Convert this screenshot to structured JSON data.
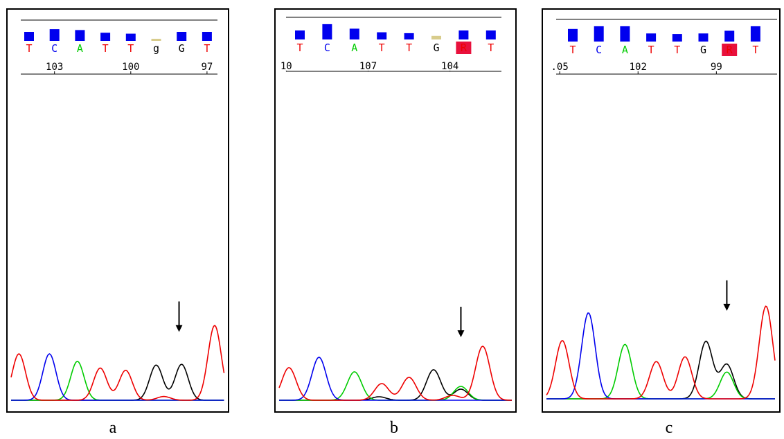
{
  "colors": {
    "A": "#00cc00",
    "C": "#0000ee",
    "G": "#000000",
    "T": "#ee0000",
    "R": "#ee0000",
    "qv_bar": "#0000ee",
    "qv_low": "#d8cc8c",
    "ambig_bg": "#e8103c"
  },
  "panels": [
    {
      "caption": "a",
      "bases": [
        "T",
        "C",
        "A",
        "T",
        "T",
        "g",
        "G",
        "T"
      ],
      "base_colors": [
        "T",
        "C",
        "A",
        "T",
        "T",
        "G",
        "G",
        "T"
      ],
      "quality": [
        0.5,
        0.65,
        0.6,
        0.45,
        0.4,
        0.05,
        0.5,
        0.5
      ],
      "low_quality": [
        false,
        false,
        false,
        false,
        false,
        true,
        false,
        false
      ],
      "ambiguous": [
        false,
        false,
        false,
        false,
        false,
        false,
        false,
        false
      ],
      "positions": [
        {
          "label": "103",
          "at": 1.0
        },
        {
          "label": "100",
          "at": 4.0
        },
        {
          "label": "97",
          "at": 7.0
        }
      ],
      "arrow_at": 5.9,
      "peaks": {
        "T": [
          {
            "at": -0.4,
            "h": 0.62
          },
          {
            "at": 2.8,
            "h": 0.43
          },
          {
            "at": 3.8,
            "h": 0.4
          },
          {
            "at": 7.3,
            "h": 1.0
          },
          {
            "at": 5.3,
            "h": 0.05
          }
        ],
        "C": [
          {
            "at": 0.8,
            "h": 0.62
          }
        ],
        "A": [
          {
            "at": 1.9,
            "h": 0.52
          }
        ],
        "G": [
          {
            "at": 5.0,
            "h": 0.47
          },
          {
            "at": 6.0,
            "h": 0.48
          }
        ]
      }
    },
    {
      "caption": "b",
      "bases": [
        "T",
        "C",
        "A",
        "T",
        "T",
        "G",
        "R",
        "T"
      ],
      "base_colors": [
        "T",
        "C",
        "A",
        "T",
        "T",
        "G",
        "R",
        "T"
      ],
      "quality": [
        0.5,
        0.85,
        0.6,
        0.4,
        0.35,
        0.2,
        0.5,
        0.5
      ],
      "low_quality": [
        false,
        false,
        false,
        false,
        false,
        true,
        false,
        false
      ],
      "ambiguous": [
        false,
        false,
        false,
        false,
        false,
        false,
        true,
        false
      ],
      "positions": [
        {
          "label": "10",
          "at": -0.5
        },
        {
          "label": "107",
          "at": 2.5
        },
        {
          "label": "104",
          "at": 5.5
        }
      ],
      "arrow_at": 5.9,
      "peaks": {
        "T": [
          {
            "at": -0.4,
            "h": 0.47
          },
          {
            "at": 3.0,
            "h": 0.24
          },
          {
            "at": 4.0,
            "h": 0.33
          },
          {
            "at": 6.7,
            "h": 0.78
          },
          {
            "at": 5.6,
            "h": 0.07
          }
        ],
        "C": [
          {
            "at": 0.7,
            "h": 0.62
          }
        ],
        "A": [
          {
            "at": 2.0,
            "h": 0.41
          },
          {
            "at": 5.9,
            "h": 0.2
          }
        ],
        "G": [
          {
            "at": 4.9,
            "h": 0.44
          },
          {
            "at": 5.9,
            "h": 0.16
          },
          {
            "at": 2.9,
            "h": 0.05
          }
        ]
      }
    },
    {
      "caption": "c",
      "bases": [
        "T",
        "C",
        "A",
        "T",
        "T",
        "G",
        "R",
        "T"
      ],
      "base_colors": [
        "T",
        "C",
        "A",
        "T",
        "T",
        "G",
        "R",
        "T"
      ],
      "quality": [
        0.7,
        0.85,
        0.85,
        0.45,
        0.42,
        0.45,
        0.6,
        0.85
      ],
      "low_quality": [
        false,
        false,
        false,
        false,
        false,
        false,
        false,
        false
      ],
      "ambiguous": [
        false,
        false,
        false,
        false,
        false,
        false,
        true,
        false
      ],
      "positions": [
        {
          "label": ".05",
          "at": -0.5
        },
        {
          "label": "102",
          "at": 2.5
        },
        {
          "label": "99",
          "at": 5.5
        }
      ],
      "arrow_at": 5.9,
      "peaks": {
        "T": [
          {
            "at": -0.4,
            "h": 0.61
          },
          {
            "at": 3.2,
            "h": 0.39
          },
          {
            "at": 4.3,
            "h": 0.44
          },
          {
            "at": 7.4,
            "h": 0.97
          }
        ],
        "C": [
          {
            "at": 0.6,
            "h": 0.9
          }
        ],
        "A": [
          {
            "at": 2.0,
            "h": 0.57
          },
          {
            "at": 5.9,
            "h": 0.28
          }
        ],
        "G": [
          {
            "at": 5.1,
            "h": 0.6
          },
          {
            "at": 5.9,
            "h": 0.36
          }
        ]
      }
    }
  ]
}
